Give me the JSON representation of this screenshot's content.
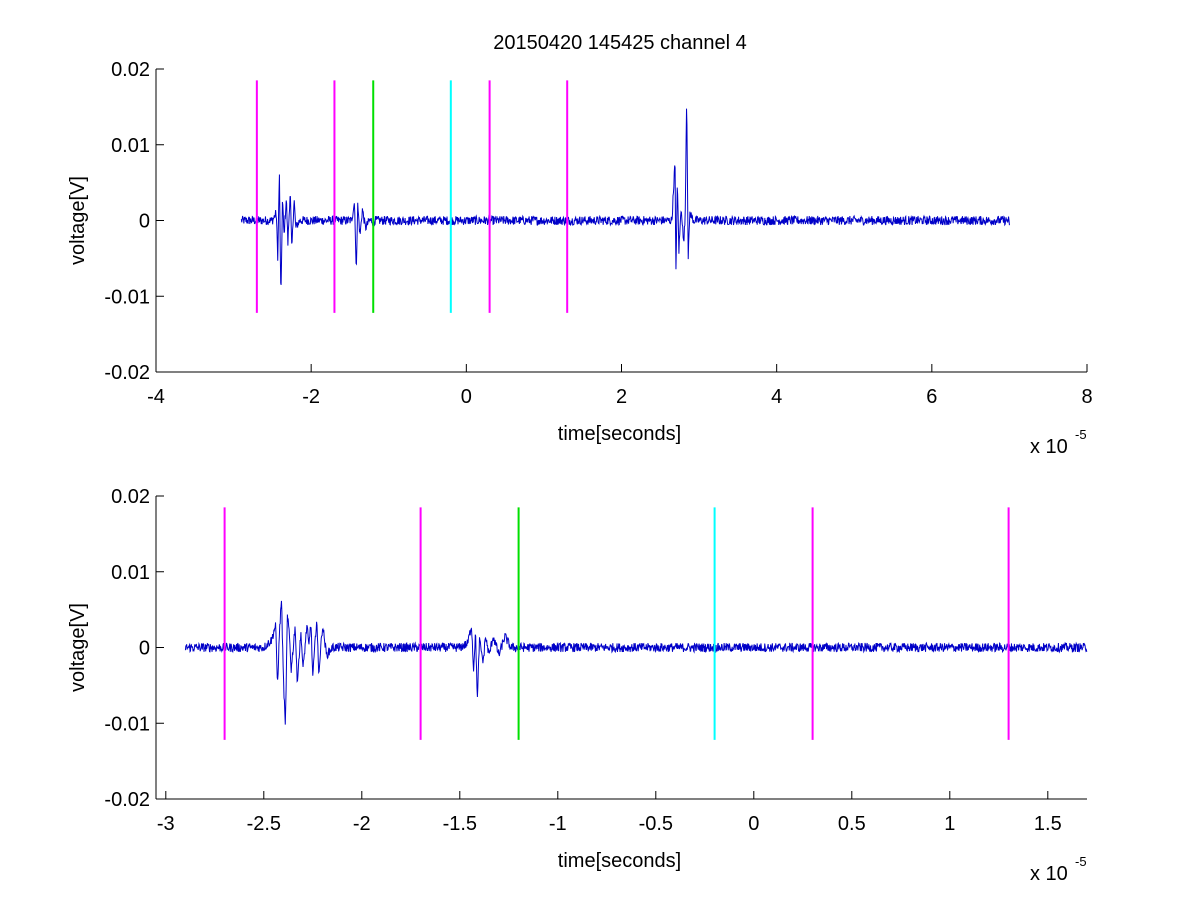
{
  "figure": {
    "title": "20150420 145425 channel 4"
  },
  "colors": {
    "signal": "#0000c8",
    "magenta": "#ff00ff",
    "green": "#00e000",
    "cyan": "#00ffff"
  },
  "chart_data": [
    {
      "type": "line",
      "title": "20150420 145425 channel 4",
      "xlabel": "time[seconds]",
      "ylabel": "voltage[V]",
      "x_exponent_label": "x 10",
      "x_exponent": "-5",
      "xlim": [
        -4,
        8
      ],
      "ylim": [
        -0.02,
        0.02
      ],
      "grid": false,
      "x_ticks": [
        {
          "value": -4,
          "label": "-4"
        },
        {
          "value": -2,
          "label": "-2"
        },
        {
          "value": 0,
          "label": "0"
        },
        {
          "value": 2,
          "label": "2"
        },
        {
          "value": 4,
          "label": "4"
        },
        {
          "value": 6,
          "label": "6"
        },
        {
          "value": 8,
          "label": "8"
        }
      ],
      "y_ticks": [
        {
          "value": 0.02,
          "label": "0.02"
        },
        {
          "value": 0.01,
          "label": "0.01"
        },
        {
          "value": 0,
          "label": "0"
        },
        {
          "value": -0.01,
          "label": "-0.01"
        },
        {
          "value": -0.02,
          "label": "-0.02"
        }
      ],
      "series": [
        {
          "x_range": [
            -2.9,
            7.0
          ],
          "points": [
            [
              -2.9,
              0.0
            ],
            [
              -2.5,
              0.0
            ],
            [
              -2.45,
              0.001
            ],
            [
              -2.43,
              -0.005
            ],
            [
              -2.41,
              0.0065
            ],
            [
              -2.39,
              -0.011
            ],
            [
              -2.37,
              0.003
            ],
            [
              -2.35,
              -0.002
            ],
            [
              -2.32,
              0.003
            ],
            [
              -2.3,
              -0.003
            ],
            [
              -2.27,
              0.004
            ],
            [
              -2.25,
              -0.004
            ],
            [
              -2.22,
              0.003
            ],
            [
              -2.2,
              -0.001
            ],
            [
              -2.15,
              0.0
            ],
            [
              -1.55,
              0.0
            ],
            [
              -1.48,
              0.0
            ],
            [
              -1.44,
              0.0025
            ],
            [
              -1.42,
              -0.007
            ],
            [
              -1.4,
              0.002
            ],
            [
              -1.37,
              -0.002
            ],
            [
              -1.34,
              0.0015
            ],
            [
              -1.3,
              -0.001
            ],
            [
              -1.25,
              0.0
            ],
            [
              2.55,
              0.0
            ],
            [
              2.62,
              0.0
            ],
            [
              2.65,
              0.0
            ],
            [
              2.69,
              0.008
            ],
            [
              2.7,
              -0.0075
            ],
            [
              2.72,
              0.005
            ],
            [
              2.74,
              -0.004
            ],
            [
              2.77,
              0.002
            ],
            [
              2.8,
              -0.003
            ],
            [
              2.82,
              0.0
            ],
            [
              2.84,
              0.0168
            ],
            [
              2.86,
              -0.0052
            ],
            [
              2.88,
              0.001
            ],
            [
              2.93,
              0.0
            ],
            [
              6.99,
              0.0
            ],
            [
              7.0,
              -0.001
            ]
          ]
        }
      ],
      "vertical_markers": [
        {
          "x": -2.7,
          "color": "magenta",
          "y_range": [
            -0.0122,
            0.0185
          ]
        },
        {
          "x": -1.7,
          "color": "magenta",
          "y_range": [
            -0.0122,
            0.0185
          ]
        },
        {
          "x": -1.2,
          "color": "green",
          "y_range": [
            -0.0122,
            0.0185
          ]
        },
        {
          "x": -0.2,
          "color": "cyan",
          "y_range": [
            -0.0122,
            0.0185
          ]
        },
        {
          "x": 0.3,
          "color": "magenta",
          "y_range": [
            -0.0122,
            0.0185
          ]
        },
        {
          "x": 1.3,
          "color": "magenta",
          "y_range": [
            -0.0122,
            0.0185
          ]
        }
      ]
    },
    {
      "type": "line",
      "title": "",
      "xlabel": "time[seconds]",
      "ylabel": "voltage[V]",
      "x_exponent_label": "x 10",
      "x_exponent": "-5",
      "xlim": [
        -3.05,
        1.7
      ],
      "ylim": [
        -0.02,
        0.02
      ],
      "grid": false,
      "x_ticks": [
        {
          "value": -3,
          "label": "-3"
        },
        {
          "value": -2.5,
          "label": "-2.5"
        },
        {
          "value": -2,
          "label": "-2"
        },
        {
          "value": -1.5,
          "label": "-1.5"
        },
        {
          "value": -1,
          "label": "-1"
        },
        {
          "value": -0.5,
          "label": "-0.5"
        },
        {
          "value": 0,
          "label": "0"
        },
        {
          "value": 0.5,
          "label": "0.5"
        },
        {
          "value": 1,
          "label": "1"
        },
        {
          "value": 1.5,
          "label": "1.5"
        }
      ],
      "y_ticks": [
        {
          "value": 0.02,
          "label": "0.02"
        },
        {
          "value": 0.01,
          "label": "0.01"
        },
        {
          "value": 0,
          "label": "0"
        },
        {
          "value": -0.01,
          "label": "-0.01"
        },
        {
          "value": -0.02,
          "label": "-0.02"
        }
      ],
      "series": [
        {
          "x_range": [
            -2.9,
            1.7
          ],
          "points": [
            [
              -2.9,
              0.0
            ],
            [
              -2.5,
              0.0
            ],
            [
              -2.46,
              0.001
            ],
            [
              -2.44,
              0.003
            ],
            [
              -2.43,
              -0.005
            ],
            [
              -2.42,
              0.002
            ],
            [
              -2.41,
              0.0065
            ],
            [
              -2.4,
              -0.004
            ],
            [
              -2.39,
              -0.0108
            ],
            [
              -2.38,
              0.004
            ],
            [
              -2.37,
              0.002
            ],
            [
              -2.36,
              -0.003
            ],
            [
              -2.34,
              0.003
            ],
            [
              -2.33,
              -0.0045
            ],
            [
              -2.31,
              0.002
            ],
            [
              -2.3,
              -0.003
            ],
            [
              -2.28,
              0.003
            ],
            [
              -2.27,
              0.0
            ],
            [
              -2.26,
              0.0035
            ],
            [
              -2.25,
              -0.004
            ],
            [
              -2.23,
              0.004
            ],
            [
              -2.22,
              -0.0035
            ],
            [
              -2.2,
              0.003
            ],
            [
              -2.18,
              -0.001
            ],
            [
              -2.15,
              0.0
            ],
            [
              -1.5,
              0.0
            ],
            [
              -1.46,
              0.0005
            ],
            [
              -1.44,
              0.003
            ],
            [
              -1.43,
              -0.003
            ],
            [
              -1.42,
              0.002
            ],
            [
              -1.41,
              -0.007
            ],
            [
              -1.4,
              0.001
            ],
            [
              -1.38,
              -0.002
            ],
            [
              -1.37,
              0.0015
            ],
            [
              -1.35,
              -0.001
            ],
            [
              -1.33,
              0.0015
            ],
            [
              -1.3,
              -0.001
            ],
            [
              -1.27,
              0.0015
            ],
            [
              -1.24,
              0.0
            ],
            [
              1.7,
              0.0
            ]
          ]
        }
      ],
      "vertical_markers": [
        {
          "x": -2.7,
          "color": "magenta",
          "y_range": [
            -0.0122,
            0.0185
          ]
        },
        {
          "x": -1.7,
          "color": "magenta",
          "y_range": [
            -0.0122,
            0.0185
          ]
        },
        {
          "x": -1.2,
          "color": "green",
          "y_range": [
            -0.0122,
            0.0185
          ]
        },
        {
          "x": -0.2,
          "color": "cyan",
          "y_range": [
            -0.0122,
            0.0185
          ]
        },
        {
          "x": 0.3,
          "color": "magenta",
          "y_range": [
            -0.0122,
            0.0185
          ]
        },
        {
          "x": 1.3,
          "color": "magenta",
          "y_range": [
            -0.0122,
            0.0185
          ]
        }
      ]
    }
  ]
}
